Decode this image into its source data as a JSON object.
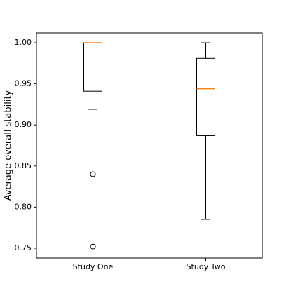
{
  "chart_data": {
    "type": "box",
    "title": "",
    "xlabel": "",
    "ylabel": "Average overall stability",
    "ylim": [
      0.738,
      1.012
    ],
    "yticks": [
      "0.75",
      "0.80",
      "0.85",
      "0.90",
      "0.95",
      "1.00"
    ],
    "categories": [
      "Study One",
      "Study Two"
    ],
    "boxes": [
      {
        "category": "Study One",
        "whisker_low": 0.919,
        "q1": 0.941,
        "median": 1.0,
        "q3": 1.0,
        "whisker_high": 1.0,
        "outliers": [
          0.84,
          0.752
        ]
      },
      {
        "category": "Study Two",
        "whisker_low": 0.785,
        "q1": 0.887,
        "median": 0.944,
        "q3": 0.981,
        "whisker_high": 1.0,
        "outliers": []
      }
    ],
    "grid": false
  },
  "colors": {
    "box": "#000000",
    "median": "#ff7f0e"
  }
}
